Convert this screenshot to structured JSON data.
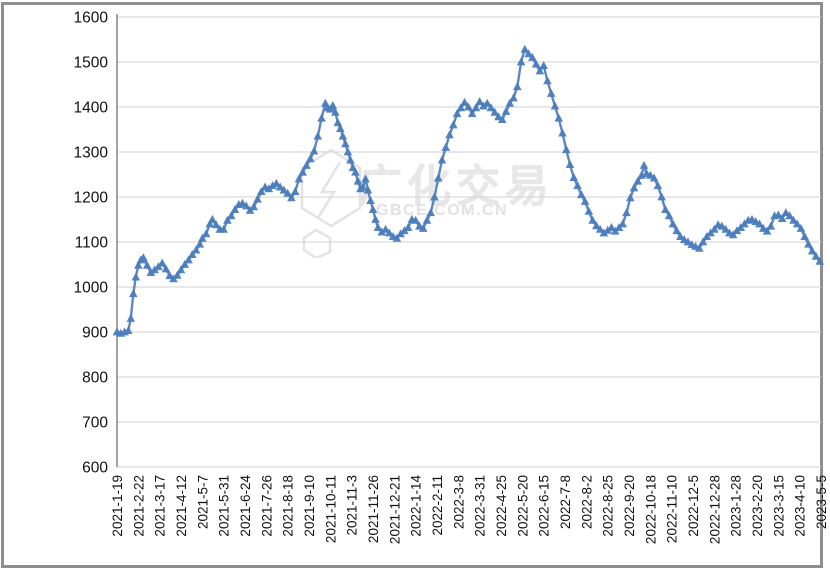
{
  "watermark": {
    "cn": "广化交易",
    "url": "GBCE.COM.CN"
  },
  "chart_data": {
    "type": "line",
    "title": "",
    "legend": null,
    "marker": "triangle-up",
    "line_color": "#5d87c0",
    "marker_color": "#4b7dbc",
    "gridline_color": "#d9d9d9",
    "axis_color": "#8c8c8c",
    "ylim": [
      600,
      1600
    ],
    "y_ticks": [
      600,
      700,
      800,
      900,
      1000,
      1100,
      1200,
      1300,
      1400,
      1500,
      1600
    ],
    "x_tick_interval_points": 17,
    "x_total_points": 561,
    "x_tick_labels": [
      "2021-1-19",
      "2021-2-22",
      "2021-3-17",
      "2021-4-12",
      "2021-5-7",
      "2021-5-31",
      "2021-6-24",
      "2021-7-26",
      "2021-8-18",
      "2021-9-10",
      "2021-10-11",
      "2021-11-3",
      "2021-11-26",
      "2021-12-21",
      "2022-1-14",
      "2022-2-11",
      "2022-3-8",
      "2022-3-31",
      "2022-4-25",
      "2022-5-20",
      "2022-6-15",
      "2022-7-8",
      "2022-8-2",
      "2022-8-25",
      "2022-9-20",
      "2022-10-18",
      "2022-11-10",
      "2022-12-5",
      "2022-12-28",
      "2023-1-28",
      "2023-2-20",
      "2023-3-15",
      "2023-4-10",
      "2023-5-5"
    ],
    "points": [
      [
        0,
        900
      ],
      [
        3,
        897
      ],
      [
        6,
        900
      ],
      [
        9,
        903
      ],
      [
        11,
        930
      ],
      [
        13,
        985
      ],
      [
        15,
        1022
      ],
      [
        17,
        1048
      ],
      [
        19,
        1060
      ],
      [
        21,
        1065
      ],
      [
        24,
        1048
      ],
      [
        27,
        1032
      ],
      [
        30,
        1038
      ],
      [
        33,
        1045
      ],
      [
        36,
        1053
      ],
      [
        39,
        1040
      ],
      [
        42,
        1025
      ],
      [
        45,
        1018
      ],
      [
        48,
        1026
      ],
      [
        51,
        1038
      ],
      [
        54,
        1050
      ],
      [
        57,
        1060
      ],
      [
        60,
        1072
      ],
      [
        63,
        1082
      ],
      [
        66,
        1095
      ],
      [
        68,
        1108
      ],
      [
        71,
        1118
      ],
      [
        74,
        1140
      ],
      [
        76,
        1150
      ],
      [
        79,
        1138
      ],
      [
        82,
        1128
      ],
      [
        85,
        1128
      ],
      [
        88,
        1148
      ],
      [
        91,
        1158
      ],
      [
        94,
        1172
      ],
      [
        97,
        1183
      ],
      [
        100,
        1186
      ],
      [
        103,
        1180
      ],
      [
        106,
        1170
      ],
      [
        109,
        1178
      ],
      [
        112,
        1195
      ],
      [
        115,
        1212
      ],
      [
        118,
        1222
      ],
      [
        121,
        1218
      ],
      [
        124,
        1225
      ],
      [
        127,
        1230
      ],
      [
        130,
        1222
      ],
      [
        133,
        1215
      ],
      [
        136,
        1208
      ],
      [
        139,
        1198
      ],
      [
        142,
        1212
      ],
      [
        145,
        1240
      ],
      [
        148,
        1255
      ],
      [
        151,
        1270
      ],
      [
        154,
        1285
      ],
      [
        157,
        1302
      ],
      [
        160,
        1335
      ],
      [
        163,
        1375
      ],
      [
        166,
        1408
      ],
      [
        168,
        1398
      ],
      [
        170,
        1395
      ],
      [
        172,
        1403
      ],
      [
        174,
        1388
      ],
      [
        176,
        1365
      ],
      [
        178,
        1352
      ],
      [
        180,
        1335
      ],
      [
        182,
        1318
      ],
      [
        184,
        1300
      ],
      [
        186,
        1282
      ],
      [
        188,
        1265
      ],
      [
        190,
        1255
      ],
      [
        192,
        1235
      ],
      [
        194,
        1218
      ],
      [
        196,
        1222
      ],
      [
        198,
        1240
      ],
      [
        200,
        1215
      ],
      [
        202,
        1192
      ],
      [
        204,
        1172
      ],
      [
        206,
        1150
      ],
      [
        208,
        1132
      ],
      [
        211,
        1122
      ],
      [
        214,
        1128
      ],
      [
        217,
        1120
      ],
      [
        220,
        1112
      ],
      [
        223,
        1108
      ],
      [
        226,
        1118
      ],
      [
        229,
        1125
      ],
      [
        232,
        1132
      ],
      [
        235,
        1150
      ],
      [
        238,
        1148
      ],
      [
        241,
        1135
      ],
      [
        244,
        1130
      ],
      [
        247,
        1148
      ],
      [
        250,
        1165
      ],
      [
        253,
        1200
      ],
      [
        256,
        1242
      ],
      [
        259,
        1282
      ],
      [
        262,
        1310
      ],
      [
        265,
        1338
      ],
      [
        268,
        1360
      ],
      [
        271,
        1385
      ],
      [
        274,
        1398
      ],
      [
        277,
        1410
      ],
      [
        280,
        1400
      ],
      [
        283,
        1385
      ],
      [
        286,
        1398
      ],
      [
        289,
        1412
      ],
      [
        292,
        1402
      ],
      [
        295,
        1408
      ],
      [
        298,
        1398
      ],
      [
        301,
        1388
      ],
      [
        304,
        1378
      ],
      [
        307,
        1372
      ],
      [
        310,
        1390
      ],
      [
        313,
        1408
      ],
      [
        316,
        1420
      ],
      [
        319,
        1445
      ],
      [
        322,
        1500
      ],
      [
        325,
        1528
      ],
      [
        328,
        1518
      ],
      [
        331,
        1510
      ],
      [
        334,
        1495
      ],
      [
        337,
        1480
      ],
      [
        340,
        1492
      ],
      [
        343,
        1458
      ],
      [
        346,
        1430
      ],
      [
        349,
        1402
      ],
      [
        352,
        1375
      ],
      [
        355,
        1342
      ],
      [
        358,
        1305
      ],
      [
        361,
        1272
      ],
      [
        364,
        1243
      ],
      [
        367,
        1225
      ],
      [
        370,
        1205
      ],
      [
        373,
        1190
      ],
      [
        376,
        1168
      ],
      [
        379,
        1148
      ],
      [
        382,
        1136
      ],
      [
        385,
        1128
      ],
      [
        388,
        1120
      ],
      [
        391,
        1126
      ],
      [
        394,
        1132
      ],
      [
        397,
        1124
      ],
      [
        400,
        1132
      ],
      [
        403,
        1140
      ],
      [
        406,
        1165
      ],
      [
        409,
        1198
      ],
      [
        412,
        1220
      ],
      [
        415,
        1235
      ],
      [
        418,
        1248
      ],
      [
        420,
        1270
      ],
      [
        422,
        1252
      ],
      [
        425,
        1248
      ],
      [
        428,
        1242
      ],
      [
        431,
        1225
      ],
      [
        434,
        1200
      ],
      [
        437,
        1172
      ],
      [
        440,
        1158
      ],
      [
        443,
        1140
      ],
      [
        446,
        1125
      ],
      [
        449,
        1112
      ],
      [
        452,
        1105
      ],
      [
        455,
        1100
      ],
      [
        458,
        1094
      ],
      [
        461,
        1090
      ],
      [
        464,
        1086
      ],
      [
        467,
        1100
      ],
      [
        470,
        1112
      ],
      [
        473,
        1120
      ],
      [
        476,
        1128
      ],
      [
        479,
        1138
      ],
      [
        482,
        1135
      ],
      [
        485,
        1128
      ],
      [
        488,
        1120
      ],
      [
        491,
        1116
      ],
      [
        494,
        1125
      ],
      [
        497,
        1132
      ],
      [
        500,
        1140
      ],
      [
        503,
        1148
      ],
      [
        506,
        1150
      ],
      [
        509,
        1145
      ],
      [
        512,
        1140
      ],
      [
        515,
        1130
      ],
      [
        518,
        1124
      ],
      [
        521,
        1135
      ],
      [
        524,
        1158
      ],
      [
        527,
        1160
      ],
      [
        530,
        1152
      ],
      [
        533,
        1165
      ],
      [
        536,
        1158
      ],
      [
        539,
        1148
      ],
      [
        542,
        1140
      ],
      [
        545,
        1130
      ],
      [
        548,
        1112
      ],
      [
        551,
        1095
      ],
      [
        554,
        1080
      ],
      [
        557,
        1068
      ],
      [
        560,
        1057
      ]
    ]
  }
}
